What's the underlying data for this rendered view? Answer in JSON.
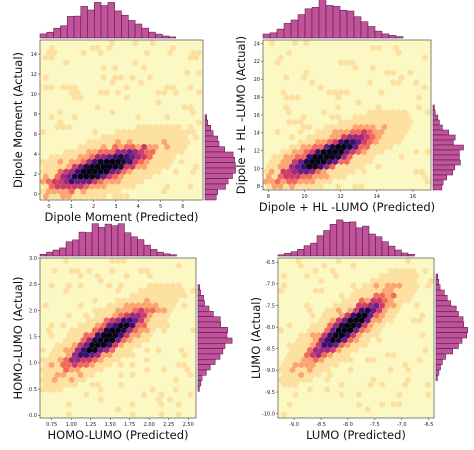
{
  "colors": {
    "background": "#fcf8c4",
    "hist_fill": "#c0539a",
    "hist_stroke": "#4a1240",
    "hex_ramp": [
      "#fcf8c4",
      "#fde0a0",
      "#fca572",
      "#f26a5b",
      "#cf3a6e",
      "#9c2a7d",
      "#6a1f86",
      "#3b0f70",
      "#1a0b3f",
      "#060318"
    ]
  },
  "chart_data": [
    {
      "type": "hexbin",
      "xlabel": "Dipole Moment (Predicted)",
      "ylabel": "Dipole Moment (Actual)",
      "xlim": [
        -0.4,
        6.9
      ],
      "ylim": [
        -0.6,
        15.4
      ],
      "xticks": [
        "0",
        "1",
        "2",
        "3",
        "4",
        "5",
        "6"
      ],
      "yticks": [
        "0",
        "2",
        "4",
        "6",
        "8",
        "10",
        "12",
        "14"
      ],
      "points": [
        [
          1.8,
          2.4
        ],
        [
          1.9,
          2.4
        ],
        [
          2.2,
          2.6
        ],
        [
          2.3,
          2.8
        ],
        [
          2.6,
          2.9
        ],
        [
          2.7,
          3.1
        ],
        [
          3.0,
          3.2
        ],
        [
          3.3,
          3.5
        ],
        [
          1.1,
          1.7
        ],
        [
          1.7,
          2.0
        ],
        [
          0.5,
          1.2
        ],
        [
          4.5,
          4.6
        ]
      ],
      "trend": {
        "slope": 0.85,
        "intercept": 0.6
      }
    },
    {
      "type": "hexbin",
      "xlabel": "Dipole + HL -LUMO (Predicted)",
      "ylabel": "Dipole + HL -LUMO (Actual)",
      "xlim": [
        7.7,
        17.0
      ],
      "ylim": [
        7.6,
        24.4
      ],
      "xticks": [
        "8",
        "10",
        "12",
        "14",
        "16"
      ],
      "yticks": [
        "8",
        "10",
        "12",
        "14",
        "16",
        "18",
        "20",
        "22",
        "24"
      ],
      "points": [
        [
          10.4,
          10.6
        ],
        [
          10.8,
          11.0
        ],
        [
          11.0,
          11.2
        ],
        [
          11.3,
          11.5
        ],
        [
          11.6,
          11.9
        ],
        [
          12.0,
          12.2
        ],
        [
          12.3,
          12.6
        ],
        [
          10.2,
          10.1
        ],
        [
          9.8,
          10.0
        ],
        [
          13.0,
          13.4
        ]
      ],
      "trend": {
        "slope": 1.0,
        "intercept": 0.2
      }
    },
    {
      "type": "hexbin",
      "xlabel": "HOMO-LUMO (Predicted)",
      "ylabel": "HOMO-LUMO (Actual)",
      "xlim": [
        0.6,
        2.6
      ],
      "ylim": [
        -0.05,
        3.0
      ],
      "xticks": [
        "0.75",
        "1.00",
        "1.25",
        "1.50",
        "1.75",
        "2.00",
        "2.25",
        "2.50"
      ],
      "yticks": [
        "0.0",
        "0.5",
        "1.0",
        "1.5",
        "2.0",
        "2.5",
        "3.0"
      ],
      "points": [
        [
          1.35,
          1.38
        ],
        [
          1.45,
          1.48
        ],
        [
          1.55,
          1.58
        ],
        [
          1.65,
          1.68
        ],
        [
          1.25,
          1.28
        ],
        [
          1.75,
          1.79
        ],
        [
          1.15,
          1.18
        ]
      ],
      "trend": {
        "slope": 1.0,
        "intercept": 0.02
      }
    },
    {
      "type": "hexbin",
      "xlabel": "LUMO (Predicted)",
      "ylabel": "LUMO (Actual)",
      "xlim": [
        -9.3,
        -6.4
      ],
      "ylim": [
        -10.1,
        -6.4
      ],
      "xticks": [
        "-9.0",
        "-8.5",
        "-8.0",
        "-7.5",
        "-7.0",
        "-6.5"
      ],
      "yticks": [
        "-10.0",
        "-9.5",
        "-9.0",
        "-8.5",
        "-8.0",
        "-7.5",
        "-7.0",
        "-6.5"
      ],
      "points": [
        [
          -8.1,
          -8.1
        ],
        [
          -8.0,
          -8.0
        ],
        [
          -7.9,
          -7.9
        ],
        [
          -8.2,
          -8.2
        ],
        [
          -7.8,
          -7.8
        ],
        [
          -8.3,
          -8.3
        ],
        [
          -7.7,
          -7.7
        ]
      ],
      "trend": {
        "slope": 1.0,
        "intercept": 0.0
      }
    }
  ]
}
